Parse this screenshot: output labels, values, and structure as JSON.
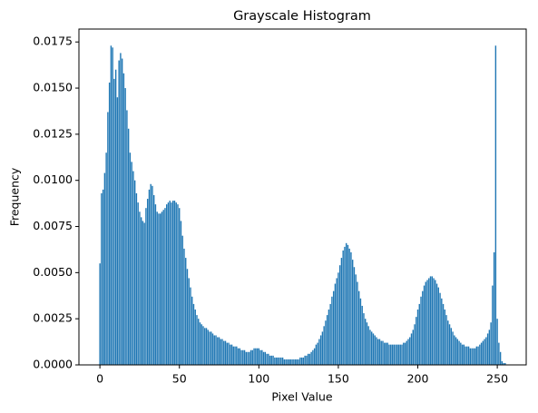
{
  "chart_data": {
    "type": "bar",
    "title": "Grayscale Histogram",
    "x_label": "Pixel Value",
    "y_label": "Frequency",
    "color": "#1f77b4",
    "bar_width": 0.8,
    "x": [
      0,
      1,
      2,
      3,
      4,
      5,
      6,
      7,
      8,
      9,
      10,
      11,
      12,
      13,
      14,
      15,
      16,
      17,
      18,
      19,
      20,
      21,
      22,
      23,
      24,
      25,
      26,
      27,
      28,
      29,
      30,
      31,
      32,
      33,
      34,
      35,
      36,
      37,
      38,
      39,
      40,
      41,
      42,
      43,
      44,
      45,
      46,
      47,
      48,
      49,
      50,
      51,
      52,
      53,
      54,
      55,
      56,
      57,
      58,
      59,
      60,
      61,
      62,
      63,
      64,
      65,
      66,
      67,
      68,
      69,
      70,
      71,
      72,
      73,
      74,
      75,
      76,
      77,
      78,
      79,
      80,
      81,
      82,
      83,
      84,
      85,
      86,
      87,
      88,
      89,
      90,
      91,
      92,
      93,
      94,
      95,
      96,
      97,
      98,
      99,
      100,
      101,
      102,
      103,
      104,
      105,
      106,
      107,
      108,
      109,
      110,
      111,
      112,
      113,
      114,
      115,
      116,
      117,
      118,
      119,
      120,
      121,
      122,
      123,
      124,
      125,
      126,
      127,
      128,
      129,
      130,
      131,
      132,
      133,
      134,
      135,
      136,
      137,
      138,
      139,
      140,
      141,
      142,
      143,
      144,
      145,
      146,
      147,
      148,
      149,
      150,
      151,
      152,
      153,
      154,
      155,
      156,
      157,
      158,
      159,
      160,
      161,
      162,
      163,
      164,
      165,
      166,
      167,
      168,
      169,
      170,
      171,
      172,
      173,
      174,
      175,
      176,
      177,
      178,
      179,
      180,
      181,
      182,
      183,
      184,
      185,
      186,
      187,
      188,
      189,
      190,
      191,
      192,
      193,
      194,
      195,
      196,
      197,
      198,
      199,
      200,
      201,
      202,
      203,
      204,
      205,
      206,
      207,
      208,
      209,
      210,
      211,
      212,
      213,
      214,
      215,
      216,
      217,
      218,
      219,
      220,
      221,
      222,
      223,
      224,
      225,
      226,
      227,
      228,
      229,
      230,
      231,
      232,
      233,
      234,
      235,
      236,
      237,
      238,
      239,
      240,
      241,
      242,
      243,
      244,
      245,
      246,
      247,
      248,
      249,
      250,
      251,
      252,
      253,
      254,
      255
    ],
    "values": [
      0.0055,
      0.0093,
      0.0095,
      0.0104,
      0.0115,
      0.0137,
      0.0153,
      0.0173,
      0.0172,
      0.0155,
      0.016,
      0.0145,
      0.0165,
      0.0169,
      0.0166,
      0.0158,
      0.015,
      0.0138,
      0.0128,
      0.0115,
      0.011,
      0.0105,
      0.01,
      0.0093,
      0.0088,
      0.0083,
      0.008,
      0.0078,
      0.0077,
      0.0085,
      0.009,
      0.0095,
      0.0098,
      0.0097,
      0.0092,
      0.0087,
      0.0083,
      0.0082,
      0.0082,
      0.0083,
      0.0084,
      0.0085,
      0.0087,
      0.0088,
      0.0089,
      0.0088,
      0.0089,
      0.0089,
      0.0088,
      0.0087,
      0.0085,
      0.0078,
      0.007,
      0.0063,
      0.0058,
      0.0052,
      0.0047,
      0.0042,
      0.0037,
      0.0033,
      0.003,
      0.0027,
      0.0025,
      0.0023,
      0.0022,
      0.0021,
      0.002,
      0.002,
      0.0019,
      0.0018,
      0.0018,
      0.0017,
      0.0016,
      0.0016,
      0.0015,
      0.0015,
      0.0014,
      0.0014,
      0.0013,
      0.0013,
      0.0012,
      0.0012,
      0.0011,
      0.0011,
      0.001,
      0.001,
      0.001,
      0.0009,
      0.0009,
      0.0008,
      0.0008,
      0.0008,
      0.0007,
      0.0007,
      0.0007,
      0.0008,
      0.0008,
      0.0009,
      0.0009,
      0.0009,
      0.0009,
      0.0008,
      0.0008,
      0.0007,
      0.0007,
      0.0006,
      0.0006,
      0.0005,
      0.0005,
      0.0005,
      0.0004,
      0.0004,
      0.0004,
      0.0004,
      0.0004,
      0.0004,
      0.0003,
      0.0003,
      0.0003,
      0.0003,
      0.0003,
      0.0003,
      0.0003,
      0.0003,
      0.0003,
      0.0003,
      0.0004,
      0.0004,
      0.0004,
      0.0005,
      0.0005,
      0.0006,
      0.0006,
      0.0007,
      0.0008,
      0.0009,
      0.0011,
      0.0012,
      0.0014,
      0.0016,
      0.0018,
      0.0021,
      0.0024,
      0.0027,
      0.003,
      0.0033,
      0.0037,
      0.004,
      0.0044,
      0.0047,
      0.005,
      0.0054,
      0.0058,
      0.0062,
      0.0064,
      0.0066,
      0.0065,
      0.0063,
      0.0061,
      0.0057,
      0.0053,
      0.0049,
      0.0045,
      0.004,
      0.0036,
      0.0032,
      0.0028,
      0.0025,
      0.0023,
      0.0021,
      0.0019,
      0.0018,
      0.0017,
      0.0016,
      0.0015,
      0.0014,
      0.0014,
      0.0013,
      0.0013,
      0.0012,
      0.0012,
      0.0012,
      0.0011,
      0.0011,
      0.0011,
      0.0011,
      0.0011,
      0.0011,
      0.0011,
      0.0011,
      0.0011,
      0.0012,
      0.0012,
      0.0013,
      0.0014,
      0.0015,
      0.0017,
      0.0019,
      0.0022,
      0.0026,
      0.003,
      0.0033,
      0.0037,
      0.004,
      0.0043,
      0.0045,
      0.0046,
      0.0047,
      0.0048,
      0.0048,
      0.0047,
      0.0046,
      0.0044,
      0.0042,
      0.0039,
      0.0036,
      0.0033,
      0.003,
      0.0027,
      0.0024,
      0.0022,
      0.002,
      0.0018,
      0.0016,
      0.0015,
      0.0014,
      0.0013,
      0.0012,
      0.0011,
      0.0011,
      0.001,
      0.001,
      0.001,
      0.0009,
      0.0009,
      0.0009,
      0.0009,
      0.001,
      0.001,
      0.0011,
      0.0012,
      0.0013,
      0.0014,
      0.0015,
      0.0017,
      0.0019,
      0.0023,
      0.0043,
      0.0061,
      0.0173,
      0.0025,
      0.0012,
      0.0007,
      0.0002,
      0.0001,
      0.0001
    ],
    "xlim": [
      -13.2,
      268.2
    ],
    "xticks": [
      0,
      50,
      100,
      150,
      200,
      250
    ],
    "ylim": [
      0,
      0.0182
    ],
    "yticks": [
      {
        "value": 0,
        "label": "0.0000"
      },
      0.0025,
      {
        "value": 0.005,
        "label": "0.0050"
      },
      0.0075,
      {
        "value": 0.01,
        "label": "0.0100"
      },
      0.0125,
      {
        "value": 0.015,
        "label": "0.0150"
      },
      0.0175
    ]
  }
}
